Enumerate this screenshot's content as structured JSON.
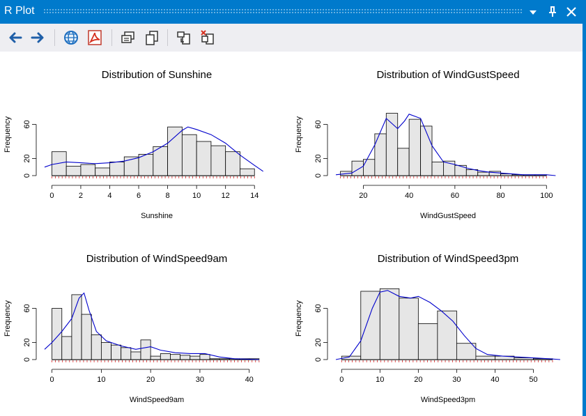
{
  "window": {
    "title": "R Plot"
  },
  "toolbar": {
    "items": [
      "back-arrow-icon",
      "forward-arrow-icon",
      "globe-icon",
      "pdf-icon",
      "copy-as-bitmap-icon",
      "copy-as-metafile-icon",
      "export-icon",
      "clear-plot-icon"
    ]
  },
  "colors": {
    "bar_fill": "#e6e6e6",
    "density": "#0000cc",
    "rug": "#cc0000",
    "accent": "#007acc"
  },
  "chart_data": [
    {
      "type": "bar",
      "title": "Distribution of Sunshine",
      "xlabel": "Sunshine",
      "ylabel": "Frequency",
      "xlim": [
        -0.5,
        15
      ],
      "ylim": [
        0,
        80
      ],
      "xticks": [
        0,
        2,
        4,
        6,
        8,
        10,
        12,
        14
      ],
      "yticks": [
        0,
        20,
        60
      ],
      "bin_edges": [
        0,
        1,
        2,
        3,
        4,
        5,
        6,
        7,
        8,
        9,
        10,
        11,
        12,
        13,
        14
      ],
      "values": [
        28,
        11,
        13,
        9,
        16,
        22,
        25,
        34,
        57,
        48,
        40,
        35,
        28,
        8
      ],
      "density": [
        [
          -0.5,
          10
        ],
        [
          0,
          13
        ],
        [
          1,
          16
        ],
        [
          2,
          15
        ],
        [
          3,
          14
        ],
        [
          4,
          15
        ],
        [
          5,
          17
        ],
        [
          6,
          21
        ],
        [
          7,
          28
        ],
        [
          8,
          38
        ],
        [
          9,
          53
        ],
        [
          9.4,
          57
        ],
        [
          10,
          54
        ],
        [
          11,
          48
        ],
        [
          12,
          38
        ],
        [
          13,
          24
        ],
        [
          14,
          12
        ],
        [
          14.6,
          5
        ]
      ]
    },
    {
      "type": "bar",
      "title": "Distribution of WindGustSpeed",
      "xlabel": "WindGustSpeed",
      "ylabel": "Frequency",
      "xlim": [
        8,
        106
      ],
      "ylim": [
        0,
        80
      ],
      "xticks": [
        20,
        40,
        60,
        80,
        100
      ],
      "yticks": [
        0,
        20,
        60
      ],
      "bin_edges": [
        10,
        15,
        20,
        25,
        30,
        35,
        40,
        45,
        50,
        55,
        60,
        65,
        70,
        75,
        80,
        85,
        90,
        95,
        100
      ],
      "values": [
        5,
        17,
        19,
        49,
        73,
        32,
        66,
        58,
        16,
        17,
        12,
        7,
        4,
        5,
        2,
        1,
        1,
        1
      ],
      "density": [
        [
          8,
          1
        ],
        [
          15,
          3
        ],
        [
          20,
          11
        ],
        [
          25,
          36
        ],
        [
          30,
          67
        ],
        [
          35,
          55
        ],
        [
          38,
          64
        ],
        [
          40,
          72
        ],
        [
          45,
          67
        ],
        [
          50,
          35
        ],
        [
          55,
          16
        ],
        [
          60,
          13
        ],
        [
          65,
          9
        ],
        [
          70,
          6
        ],
        [
          75,
          4
        ],
        [
          80,
          3
        ],
        [
          90,
          1
        ],
        [
          100,
          1
        ],
        [
          104,
          0
        ]
      ]
    },
    {
      "type": "bar",
      "title": "Distribution of WindSpeed9am",
      "xlabel": "WindSpeed9am",
      "ylabel": "Frequency",
      "xlim": [
        -1.5,
        44
      ],
      "ylim": [
        0,
        80
      ],
      "xticks": [
        0,
        10,
        20,
        30,
        40
      ],
      "yticks": [
        0,
        20,
        60
      ],
      "bin_edges": [
        0,
        2,
        4,
        6,
        8,
        10,
        12,
        14,
        16,
        18,
        20,
        22,
        24,
        26,
        28,
        30,
        32,
        34,
        36,
        38,
        40,
        42
      ],
      "values": [
        60,
        27,
        76,
        53,
        29,
        20,
        17,
        14,
        9,
        23,
        4,
        7,
        6,
        5,
        4,
        6,
        1,
        1,
        1,
        1,
        1
      ],
      "density": [
        [
          -1.5,
          12
        ],
        [
          0,
          20
        ],
        [
          2,
          33
        ],
        [
          4,
          48
        ],
        [
          5.5,
          72
        ],
        [
          6.5,
          78
        ],
        [
          7.5,
          58
        ],
        [
          9,
          33
        ],
        [
          11,
          22
        ],
        [
          14,
          16
        ],
        [
          17,
          12
        ],
        [
          20,
          15
        ],
        [
          22,
          11
        ],
        [
          25,
          8
        ],
        [
          28,
          7
        ],
        [
          31,
          7
        ],
        [
          34,
          3
        ],
        [
          37,
          1
        ],
        [
          42,
          0
        ]
      ]
    },
    {
      "type": "bar",
      "title": "Distribution of WindSpeed3pm",
      "xlabel": "WindSpeed3pm",
      "ylabel": "Frequency",
      "xlim": [
        -1.5,
        57
      ],
      "ylim": [
        0,
        80
      ],
      "xticks": [
        0,
        10,
        20,
        30,
        40,
        50
      ],
      "yticks": [
        0,
        20,
        60
      ],
      "bin_edges": [
        0,
        5,
        10,
        15,
        20,
        25,
        30,
        35,
        40,
        45,
        50,
        55
      ],
      "values": [
        4,
        80,
        83,
        72,
        42,
        57,
        19,
        4,
        4,
        2,
        1
      ],
      "density": [
        [
          -1.5,
          0
        ],
        [
          2,
          3
        ],
        [
          5,
          22
        ],
        [
          8,
          60
        ],
        [
          10,
          79
        ],
        [
          12,
          81
        ],
        [
          15,
          74
        ],
        [
          18,
          72
        ],
        [
          20,
          74
        ],
        [
          23,
          67
        ],
        [
          26,
          57
        ],
        [
          29,
          45
        ],
        [
          32,
          28
        ],
        [
          35,
          13
        ],
        [
          38,
          6
        ],
        [
          42,
          4
        ],
        [
          46,
          3
        ],
        [
          50,
          2
        ],
        [
          54,
          1
        ],
        [
          57,
          0
        ]
      ]
    }
  ]
}
